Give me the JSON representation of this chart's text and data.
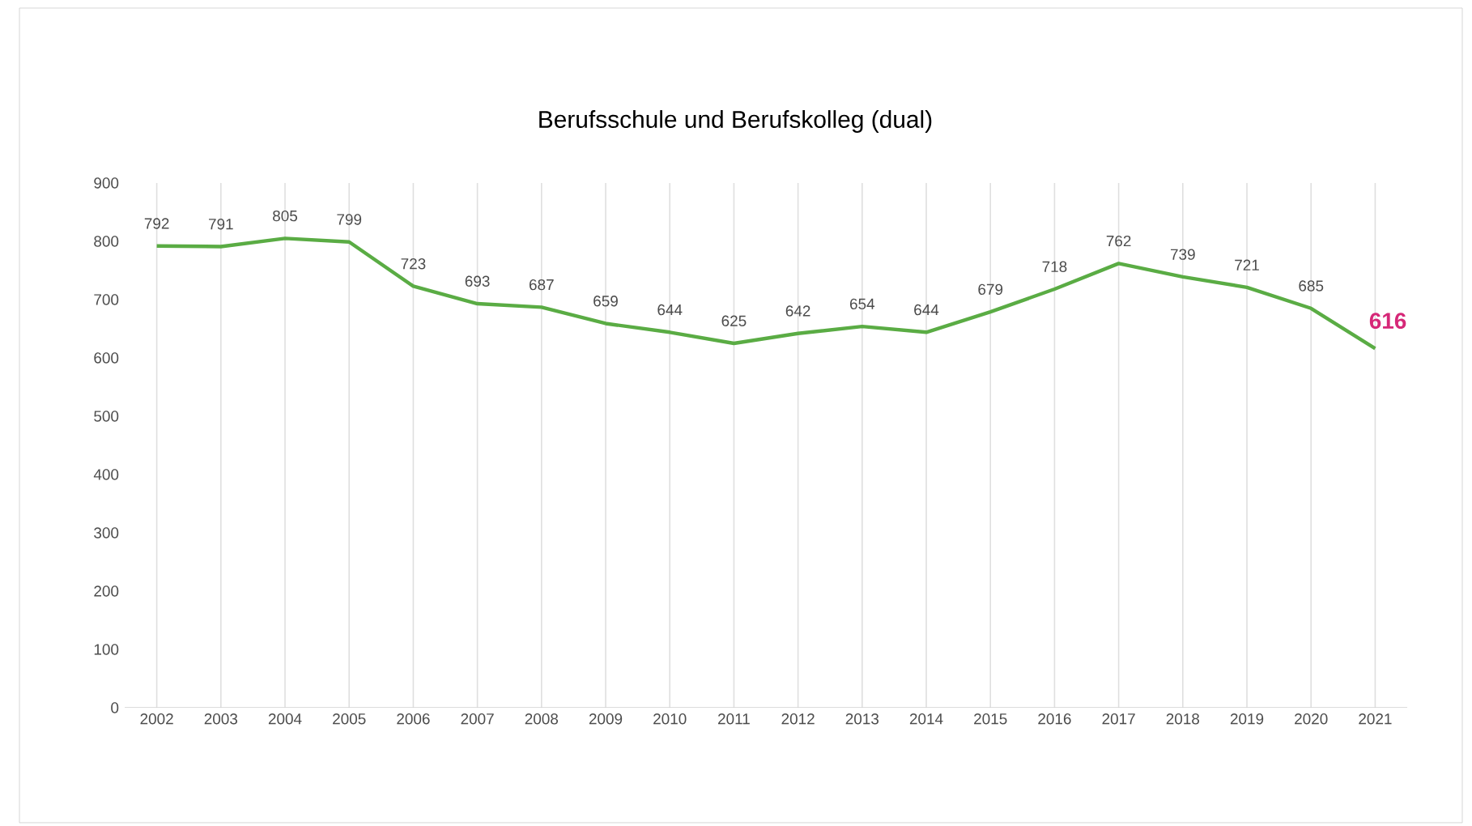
{
  "chart_data": {
    "type": "line",
    "title": "Berufsschule und Berufskolleg (dual)",
    "categories": [
      "2002",
      "2003",
      "2004",
      "2005",
      "2006",
      "2007",
      "2008",
      "2009",
      "2010",
      "2011",
      "2012",
      "2013",
      "2014",
      "2015",
      "2016",
      "2017",
      "2018",
      "2019",
      "2020",
      "2021"
    ],
    "series": [
      {
        "color": "#5aac44",
        "values": [
          792,
          791,
          805,
          799,
          723,
          693,
          687,
          659,
          644,
          625,
          642,
          654,
          644,
          679,
          718,
          762,
          739,
          721,
          685,
          616
        ]
      }
    ],
    "ylim": [
      0,
      900
    ],
    "yticks": [
      0,
      100,
      200,
      300,
      400,
      500,
      600,
      700,
      800,
      900
    ],
    "grid": "x",
    "data_labels": true,
    "marker": "none",
    "line_style": "solid"
  }
}
